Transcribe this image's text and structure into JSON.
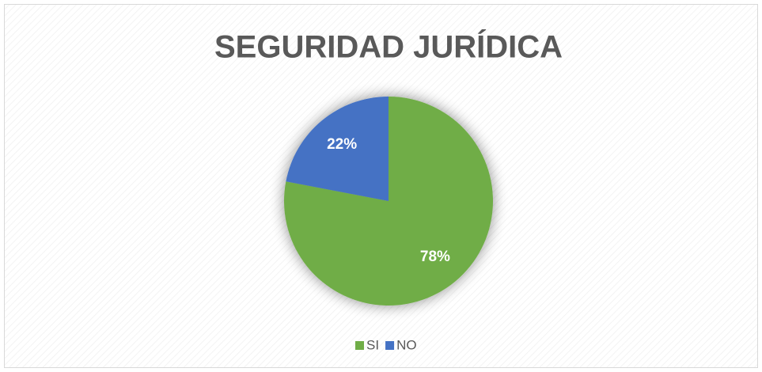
{
  "chart_data": {
    "type": "pie",
    "title": "SEGURIDAD JURÍDICA",
    "categories": [
      "SI",
      "NO"
    ],
    "values": [
      78,
      22
    ],
    "value_labels": [
      "78%",
      "22%"
    ],
    "colors": [
      "#70ad47",
      "#4472c4"
    ],
    "legend": "bottom"
  }
}
